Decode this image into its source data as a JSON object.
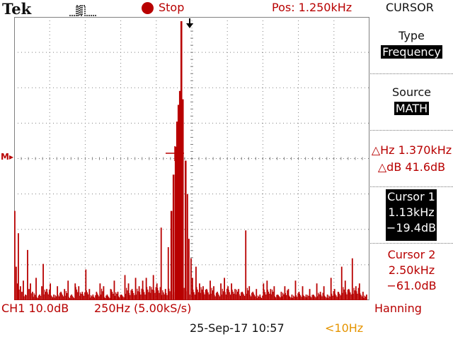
{
  "header": {
    "brand": "Tek",
    "acquisition_icon": "single-pulse-icon",
    "run_state": "Stop",
    "position": "Pos: 1.250kHz",
    "menu_title": "CURSOR"
  },
  "side_menu": {
    "type_label": "Type",
    "type_value": "Frequency",
    "source_label": "Source",
    "source_value": "MATH",
    "delta_hz": "△Hz 1.370kHz",
    "delta_db": "△dB 41.6dB",
    "cursor1": {
      "label": "Cursor 1",
      "freq": "1.13kHz",
      "level": "−19.4dB"
    },
    "cursor2": {
      "label": "Cursor 2",
      "freq": "2.50kHz",
      "level": "−61.0dB"
    }
  },
  "footer": {
    "channel_scale": "CH1 10.0dB",
    "timebase": "250Hz (5.00kS/s)",
    "window": "Hanning",
    "datetime": "25-Sep-17 10:57",
    "trigger_freq": "<10Hz"
  },
  "screen": {
    "math_marker": "M▸",
    "trigger_marker_icon": "trigger-position-arrow-icon",
    "cursor_crosshair_icon": "cursor-crosshair-icon",
    "trace_color": "#b80000",
    "grid_color": "#808080"
  },
  "chart_data": {
    "type": "bar",
    "x_unit": "Hz",
    "xlim": [
      0,
      2500
    ],
    "y_divisions": 8,
    "x_divisions": 10,
    "x": [
      0,
      10,
      20,
      25,
      40,
      50,
      60,
      75,
      90,
      100,
      110,
      125,
      150,
      175,
      190,
      200,
      225,
      250,
      275,
      300,
      325,
      350,
      375,
      400,
      425,
      450,
      475,
      500,
      525,
      550,
      575,
      600,
      625,
      650,
      675,
      700,
      725,
      750,
      775,
      800,
      825,
      850,
      875,
      900,
      925,
      950,
      975,
      1000,
      1030,
      1060,
      1080,
      1100,
      1115,
      1130,
      1140,
      1150,
      1160,
      1170,
      1180,
      1200,
      1215,
      1225,
      1240,
      1250,
      1275,
      1300,
      1325,
      1350,
      1375,
      1400,
      1425,
      1450,
      1475,
      1500,
      1525,
      1550,
      1575,
      1600,
      1625,
      1650,
      1675,
      1700,
      1725,
      1750,
      1775,
      1800,
      1825,
      1850,
      1875,
      1900,
      1925,
      1950,
      1975,
      2000,
      2025,
      2050,
      2075,
      2100,
      2125,
      2150,
      2175,
      2200,
      2225,
      2250,
      2275,
      2300,
      2325,
      2350,
      2375,
      2400,
      2425,
      2450,
      2475
    ],
    "values": [
      0.32,
      0.12,
      0.06,
      0.24,
      0.05,
      0.03,
      0.07,
      0.02,
      0.18,
      0.04,
      0.06,
      0.03,
      0.08,
      0.02,
      0.05,
      0.13,
      0.04,
      0.06,
      0.02,
      0.05,
      0.03,
      0.04,
      0.07,
      0.02,
      0.06,
      0.05,
      0.03,
      0.11,
      0.04,
      0.02,
      0.03,
      0.06,
      0.05,
      0.02,
      0.04,
      0.07,
      0.03,
      0.02,
      0.09,
      0.06,
      0.04,
      0.08,
      0.05,
      0.07,
      0.08,
      0.05,
      0.09,
      0.06,
      0.26,
      0.04,
      0.19,
      0.32,
      0.45,
      0.55,
      0.64,
      0.7,
      0.75,
      1.0,
      0.72,
      0.5,
      0.38,
      0.22,
      0.15,
      0.08,
      0.12,
      0.06,
      0.05,
      0.04,
      0.07,
      0.05,
      0.03,
      0.06,
      0.08,
      0.05,
      0.06,
      0.04,
      0.04,
      0.03,
      0.25,
      0.05,
      0.03,
      0.04,
      0.02,
      0.06,
      0.07,
      0.04,
      0.05,
      0.02,
      0.03,
      0.05,
      0.04,
      0.02,
      0.07,
      0.03,
      0.05,
      0.02,
      0.04,
      0.02,
      0.06,
      0.03,
      0.05,
      0.02,
      0.08,
      0.04,
      0.03,
      0.12,
      0.07,
      0.04,
      0.15,
      0.05,
      0.06,
      0.03,
      0.02
    ]
  }
}
